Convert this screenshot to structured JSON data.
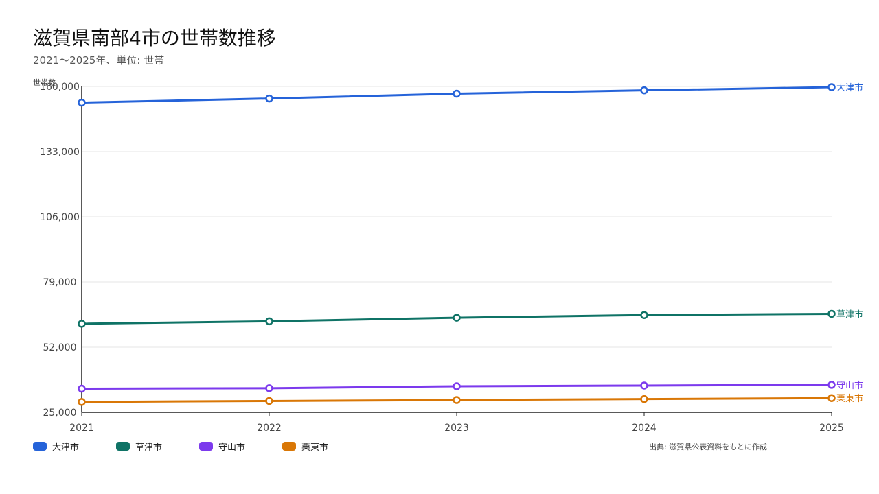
{
  "header": {
    "title": "滋賀県南部4市の世帯数推移",
    "subtitle": "2021〜2025年、単位: 世帯"
  },
  "source": "出典: 滋賀県公表資料をもとに作成",
  "chart_data": {
    "type": "line",
    "ylabel": "世帯数",
    "x": [
      "2021",
      "2022",
      "2023",
      "2024",
      "2025"
    ],
    "yticks": [
      "25,000",
      "52,000",
      "79,000",
      "106,000",
      "133,000",
      "160,000"
    ],
    "ylim": [
      25000,
      160000
    ],
    "grid": true,
    "legend_position": "bottom-left",
    "series": [
      {
        "name": "大津市",
        "color": "#2563d9",
        "values": [
          153300,
          155000,
          157000,
          158400,
          159700
        ]
      },
      {
        "name": "草津市",
        "color": "#0f7366",
        "values": [
          61700,
          62700,
          64200,
          65300,
          65800
        ]
      },
      {
        "name": "守山市",
        "color": "#7c3aed",
        "values": [
          34800,
          35000,
          35800,
          36100,
          36400
        ]
      },
      {
        "name": "栗東市",
        "color": "#d97706",
        "values": [
          29300,
          29700,
          30100,
          30500,
          30900
        ]
      }
    ]
  }
}
